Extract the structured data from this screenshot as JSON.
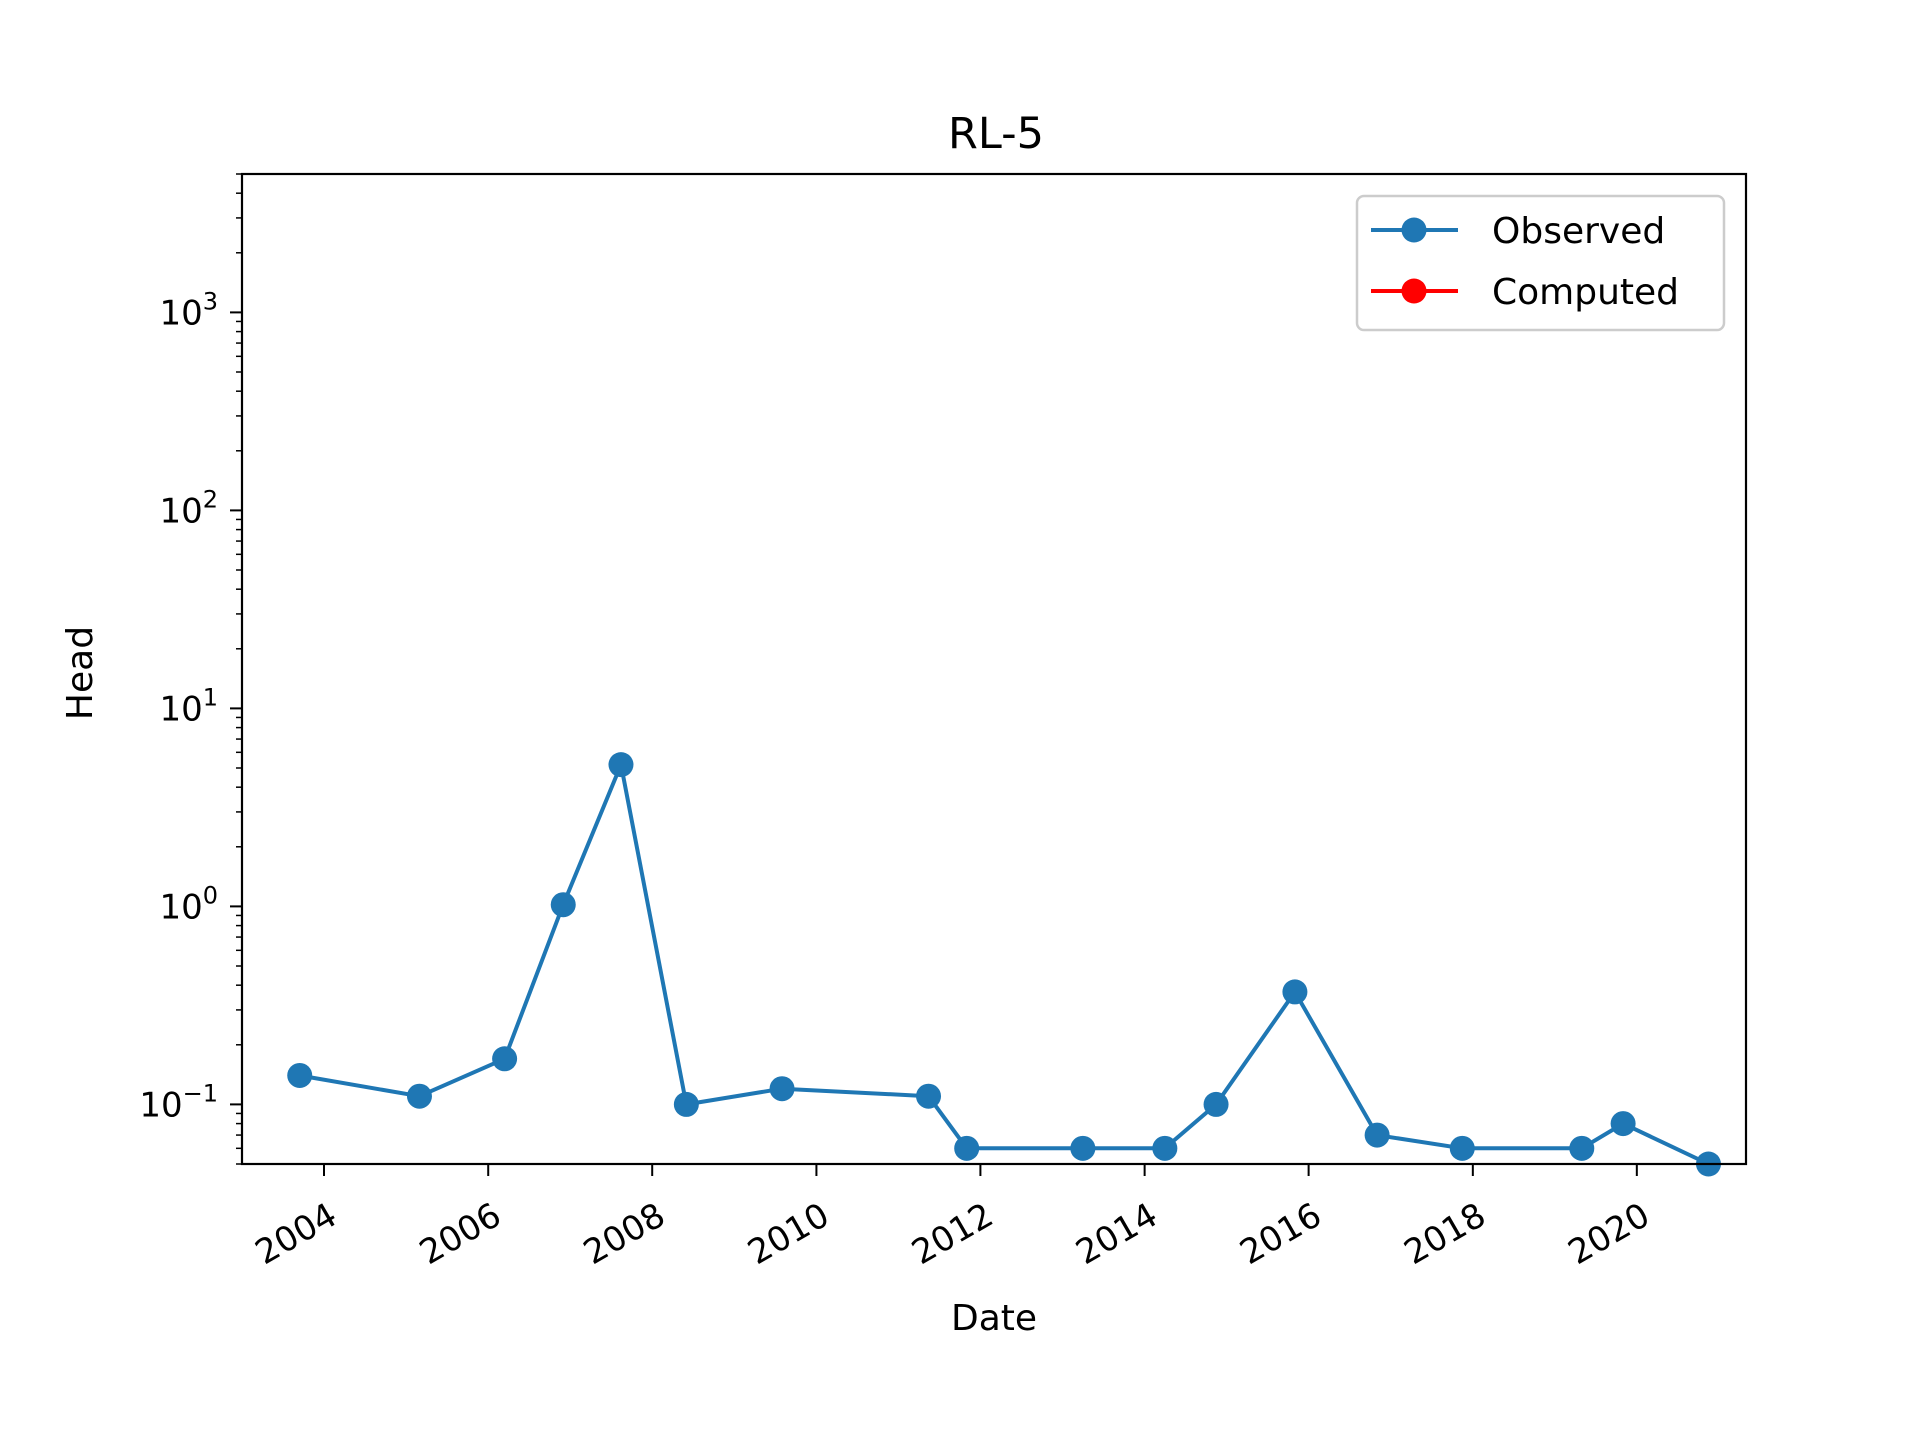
{
  "chart_data": {
    "type": "line",
    "title": "RL-5",
    "xlabel": "Date",
    "ylabel": "Head",
    "yscale": "log",
    "xlim": [
      "2003-01-01",
      "2021-05-01"
    ],
    "ylim": [
      0.05,
      5000
    ],
    "x_ticks": [
      {
        "date": "2004-01-01",
        "label": "2004"
      },
      {
        "date": "2006-01-01",
        "label": "2006"
      },
      {
        "date": "2008-01-01",
        "label": "2008"
      },
      {
        "date": "2010-01-01",
        "label": "2010"
      },
      {
        "date": "2012-01-01",
        "label": "2012"
      },
      {
        "date": "2014-01-01",
        "label": "2014"
      },
      {
        "date": "2016-01-01",
        "label": "2016"
      },
      {
        "date": "2018-01-01",
        "label": "2018"
      },
      {
        "date": "2020-01-01",
        "label": "2020"
      }
    ],
    "y_ticks": [
      {
        "value": 0.1,
        "base": "10",
        "exp": "−1"
      },
      {
        "value": 1,
        "base": "10",
        "exp": "0"
      },
      {
        "value": 10,
        "base": "10",
        "exp": "1"
      },
      {
        "value": 100,
        "base": "10",
        "exp": "2"
      },
      {
        "value": 1000,
        "base": "10",
        "exp": "3"
      }
    ],
    "grid": false,
    "legend_position": "top-right",
    "series": [
      {
        "name": "Observed",
        "color": "#1f77b4",
        "marker": "circle",
        "points": [
          {
            "x": "2003-09-15",
            "y": 0.14
          },
          {
            "x": "2005-03-01",
            "y": 0.11
          },
          {
            "x": "2006-03-15",
            "y": 0.17
          },
          {
            "x": "2006-12-01",
            "y": 1.02
          },
          {
            "x": "2007-08-15",
            "y": 5.2
          },
          {
            "x": "2008-06-01",
            "y": 0.1
          },
          {
            "x": "2009-08-01",
            "y": 0.12
          },
          {
            "x": "2011-05-15",
            "y": 0.11
          },
          {
            "x": "2011-11-01",
            "y": 0.06
          },
          {
            "x": "2013-04-01",
            "y": 0.06
          },
          {
            "x": "2014-04-01",
            "y": 0.06
          },
          {
            "x": "2014-11-15",
            "y": 0.1
          },
          {
            "x": "2015-11-01",
            "y": 0.37
          },
          {
            "x": "2016-11-01",
            "y": 0.07
          },
          {
            "x": "2017-11-15",
            "y": 0.06
          },
          {
            "x": "2019-05-01",
            "y": 0.06
          },
          {
            "x": "2019-11-01",
            "y": 0.08
          },
          {
            "x": "2020-11-15",
            "y": 0.05
          }
        ]
      },
      {
        "name": "Computed",
        "color": "#ff0000",
        "marker": "circle",
        "points": []
      }
    ]
  }
}
